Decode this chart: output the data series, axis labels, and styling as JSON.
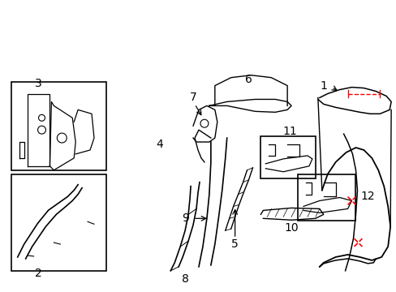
{
  "bg_color": "#ffffff",
  "line_color": "#000000",
  "red_color": "#ff0000",
  "title": "",
  "figsize": [
    4.89,
    3.6
  ],
  "dpi": 100
}
